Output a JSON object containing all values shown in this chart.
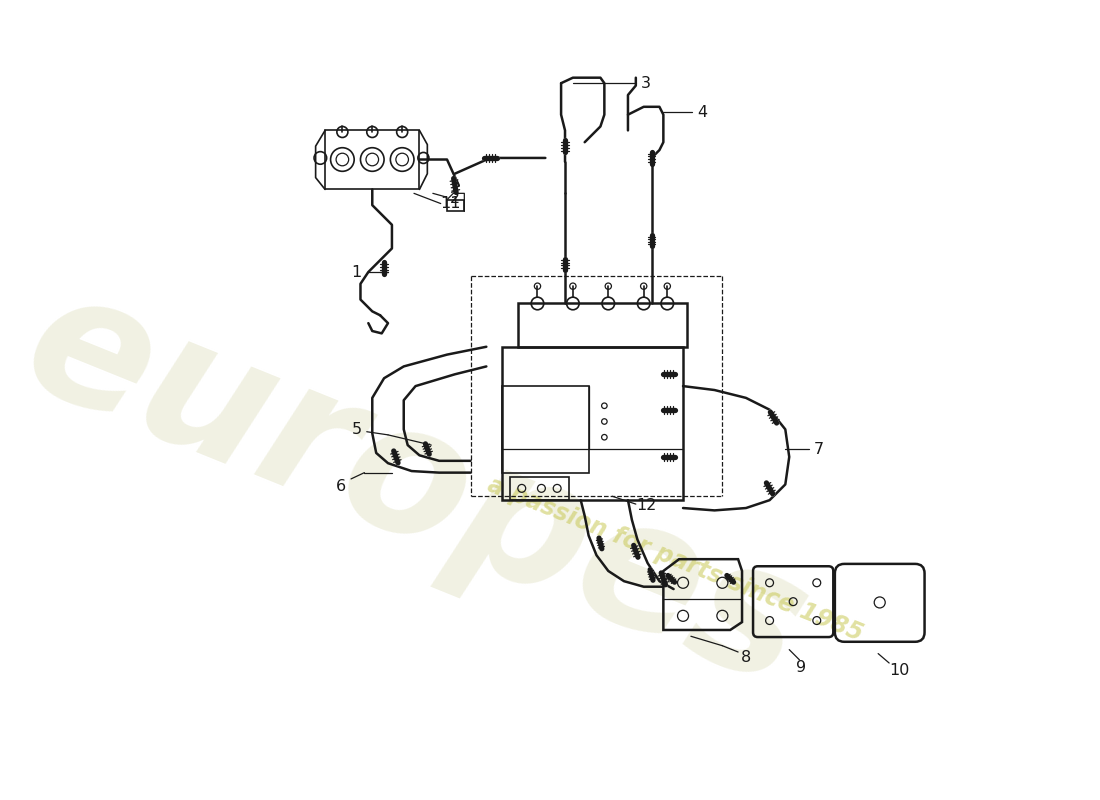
{
  "bg_color": "#ffffff",
  "line_color": "#1a1a1a",
  "wm_color1": "#d8d8b0",
  "wm_color2": "#c8c855",
  "lw_pipe": 1.8,
  "lw_detail": 1.2,
  "lw_thin": 0.9,
  "lw_dash": 0.9,
  "label_fs": 11.5,
  "fig_w": 11.0,
  "fig_h": 8.0,
  "dpi": 100
}
